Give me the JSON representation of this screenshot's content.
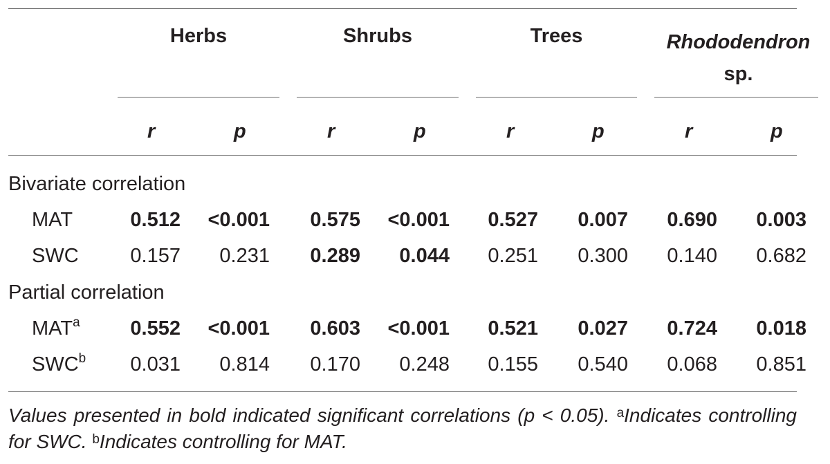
{
  "groups": [
    {
      "name": "Herbs",
      "italic_part": ""
    },
    {
      "name": "Shrubs",
      "italic_part": ""
    },
    {
      "name": "Trees",
      "italic_part": ""
    },
    {
      "name": "sp.",
      "italic_part": "Rhododendron"
    }
  ],
  "subheaders": {
    "r": "r",
    "p": "p"
  },
  "sections": [
    {
      "title": "Bivariate correlation",
      "rows": [
        {
          "label": "MAT",
          "sup": "",
          "values": [
            "0.512",
            "<0.001",
            "0.575",
            "<0.001",
            "0.527",
            "0.007",
            "0.690",
            "0.003"
          ],
          "bold": [
            true,
            true,
            true,
            true,
            true,
            true,
            true,
            true
          ]
        },
        {
          "label": "SWC",
          "sup": "",
          "values": [
            "0.157",
            "0.231",
            "0.289",
            "0.044",
            "0.251",
            "0.300",
            "0.140",
            "0.682"
          ],
          "bold": [
            false,
            false,
            true,
            true,
            false,
            false,
            false,
            false
          ]
        }
      ]
    },
    {
      "title": "Partial correlation",
      "rows": [
        {
          "label": "MAT",
          "sup": "a",
          "values": [
            "0.552",
            "<0.001",
            "0.603",
            "<0.001",
            "0.521",
            "0.027",
            "0.724",
            "0.018"
          ],
          "bold": [
            true,
            true,
            true,
            true,
            true,
            true,
            true,
            true
          ]
        },
        {
          "label": "SWC",
          "sup": "b",
          "values": [
            "0.031",
            "0.814",
            "0.170",
            "0.248",
            "0.155",
            "0.540",
            "0.068",
            "0.851"
          ],
          "bold": [
            false,
            false,
            false,
            false,
            false,
            false,
            false,
            false
          ]
        }
      ]
    }
  ],
  "footnote": {
    "main": "Values presented in bold indicated significant correlations (p < 0.05).",
    "sup_a": "a",
    "note_a": "Indicates controlling for SWC.",
    "sup_b": "b",
    "note_b": "Indicates controlling for MAT."
  }
}
